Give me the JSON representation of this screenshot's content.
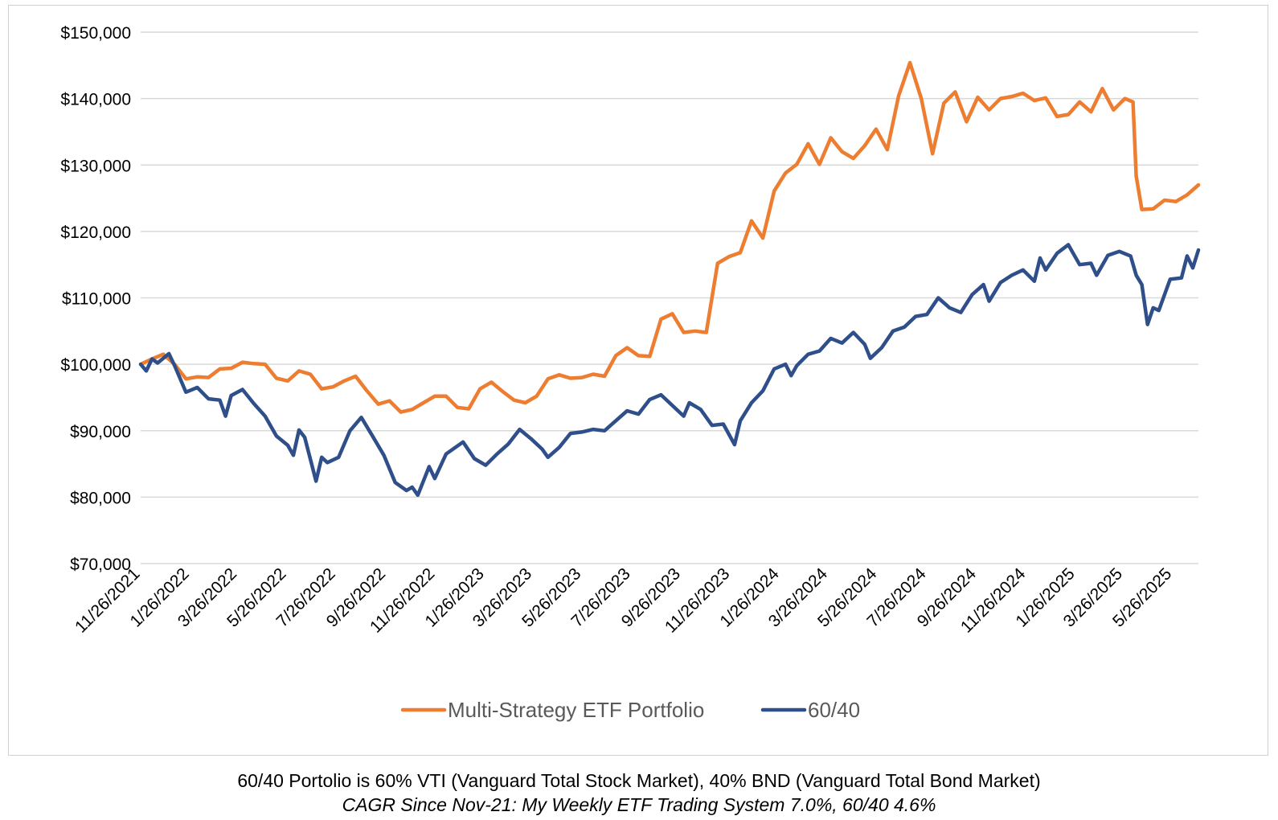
{
  "chart_data": {
    "type": "line",
    "title": "",
    "xlabel": "",
    "ylabel": "",
    "ylim": [
      70000,
      150000
    ],
    "yticks": [
      70000,
      80000,
      90000,
      100000,
      110000,
      120000,
      130000,
      140000,
      150000
    ],
    "ytick_labels": [
      "$70,000",
      "$80,000",
      "$90,000",
      "$100,000",
      "$110,000",
      "$120,000",
      "$130,000",
      "$140,000",
      "$150,000"
    ],
    "x_start": "2021-11-26",
    "x_end": "2025-06-27",
    "xtick_dates": [
      "2021-11-26",
      "2022-01-26",
      "2022-03-26",
      "2022-05-26",
      "2022-07-26",
      "2022-09-26",
      "2022-11-26",
      "2023-01-26",
      "2023-03-26",
      "2023-05-26",
      "2023-07-26",
      "2023-09-26",
      "2023-11-26",
      "2024-01-26",
      "2024-03-26",
      "2024-05-26",
      "2024-07-26",
      "2024-09-26",
      "2024-11-26",
      "2025-01-26",
      "2025-03-26",
      "2025-05-26"
    ],
    "xtick_labels": [
      "11/26/2021",
      "1/26/2022",
      "3/26/2022",
      "5/26/2022",
      "7/26/2022",
      "9/26/2022",
      "11/26/2022",
      "1/26/2023",
      "3/26/2023",
      "5/26/2023",
      "7/26/2023",
      "9/26/2023",
      "11/26/2023",
      "1/26/2024",
      "3/26/2024",
      "5/26/2024",
      "7/26/2024",
      "9/26/2024",
      "11/26/2024",
      "1/26/2025",
      "3/26/2025",
      "5/26/2025"
    ],
    "grid": true,
    "legend_position": "bottom",
    "series": [
      {
        "name": "Multi-Strategy ETF Portfolio",
        "color": "#ED7D31",
        "points": [
          [
            "2021-11-26",
            100000
          ],
          [
            "2021-12-10",
            100800
          ],
          [
            "2021-12-24",
            101500
          ],
          [
            "2022-01-07",
            100000
          ],
          [
            "2022-01-21",
            97800
          ],
          [
            "2022-02-04",
            98100
          ],
          [
            "2022-02-18",
            98000
          ],
          [
            "2022-03-04",
            99300
          ],
          [
            "2022-03-18",
            99400
          ],
          [
            "2022-04-01",
            100300
          ],
          [
            "2022-04-15",
            100100
          ],
          [
            "2022-04-29",
            100000
          ],
          [
            "2022-05-13",
            97900
          ],
          [
            "2022-05-27",
            97500
          ],
          [
            "2022-06-10",
            99000
          ],
          [
            "2022-06-24",
            98500
          ],
          [
            "2022-07-08",
            96300
          ],
          [
            "2022-07-22",
            96600
          ],
          [
            "2022-08-05",
            97500
          ],
          [
            "2022-08-19",
            98200
          ],
          [
            "2022-09-02",
            96000
          ],
          [
            "2022-09-16",
            94000
          ],
          [
            "2022-09-30",
            94500
          ],
          [
            "2022-10-14",
            92800
          ],
          [
            "2022-10-28",
            93200
          ],
          [
            "2022-11-11",
            94200
          ],
          [
            "2022-11-25",
            95200
          ],
          [
            "2022-12-09",
            95200
          ],
          [
            "2022-12-23",
            93500
          ],
          [
            "2023-01-06",
            93300
          ],
          [
            "2023-01-20",
            96300
          ],
          [
            "2023-02-03",
            97300
          ],
          [
            "2023-02-17",
            95900
          ],
          [
            "2023-03-03",
            94600
          ],
          [
            "2023-03-17",
            94200
          ],
          [
            "2023-03-31",
            95200
          ],
          [
            "2023-04-14",
            97800
          ],
          [
            "2023-04-28",
            98400
          ],
          [
            "2023-05-12",
            97900
          ],
          [
            "2023-05-26",
            98000
          ],
          [
            "2023-06-09",
            98500
          ],
          [
            "2023-06-23",
            98200
          ],
          [
            "2023-07-07",
            101300
          ],
          [
            "2023-07-21",
            102500
          ],
          [
            "2023-08-04",
            101300
          ],
          [
            "2023-08-18",
            101200
          ],
          [
            "2023-09-01",
            106800
          ],
          [
            "2023-09-15",
            107600
          ],
          [
            "2023-09-29",
            104800
          ],
          [
            "2023-10-13",
            105000
          ],
          [
            "2023-10-27",
            104800
          ],
          [
            "2023-11-10",
            115200
          ],
          [
            "2023-11-24",
            116200
          ],
          [
            "2023-12-08",
            116800
          ],
          [
            "2023-12-22",
            121600
          ],
          [
            "2024-01-05",
            119000
          ],
          [
            "2024-01-19",
            126100
          ],
          [
            "2024-02-02",
            128800
          ],
          [
            "2024-02-16",
            130100
          ],
          [
            "2024-03-01",
            133200
          ],
          [
            "2024-03-15",
            130100
          ],
          [
            "2024-03-29",
            134100
          ],
          [
            "2024-04-12",
            132000
          ],
          [
            "2024-04-26",
            131000
          ],
          [
            "2024-05-10",
            132900
          ],
          [
            "2024-05-24",
            135400
          ],
          [
            "2024-06-07",
            132300
          ],
          [
            "2024-06-21",
            140400
          ],
          [
            "2024-07-05",
            145400
          ],
          [
            "2024-07-19",
            140000
          ],
          [
            "2024-08-02",
            131700
          ],
          [
            "2024-08-16",
            139300
          ],
          [
            "2024-08-30",
            141000
          ],
          [
            "2024-09-13",
            136500
          ],
          [
            "2024-09-27",
            140200
          ],
          [
            "2024-10-11",
            138300
          ],
          [
            "2024-10-25",
            140000
          ],
          [
            "2024-11-08",
            140300
          ],
          [
            "2024-11-22",
            140800
          ],
          [
            "2024-12-06",
            139700
          ],
          [
            "2024-12-20",
            140100
          ],
          [
            "2025-01-03",
            137300
          ],
          [
            "2025-01-17",
            137600
          ],
          [
            "2025-01-31",
            139500
          ],
          [
            "2025-02-14",
            138000
          ],
          [
            "2025-02-28",
            141500
          ],
          [
            "2025-03-14",
            138300
          ],
          [
            "2025-03-28",
            140000
          ],
          [
            "2025-04-07",
            139500
          ],
          [
            "2025-04-11",
            128300
          ],
          [
            "2025-04-18",
            123300
          ],
          [
            "2025-05-02",
            123400
          ],
          [
            "2025-05-16",
            124700
          ],
          [
            "2025-05-30",
            124500
          ],
          [
            "2025-06-13",
            125500
          ],
          [
            "2025-06-27",
            127000
          ]
        ]
      },
      {
        "name": "60/40",
        "color": "#2F4F8A",
        "points": [
          [
            "2021-11-26",
            100000
          ],
          [
            "2021-12-03",
            99000
          ],
          [
            "2021-12-10",
            100800
          ],
          [
            "2021-12-17",
            100200
          ],
          [
            "2021-12-31",
            101600
          ],
          [
            "2022-01-07",
            99800
          ],
          [
            "2022-01-21",
            95800
          ],
          [
            "2022-02-04",
            96500
          ],
          [
            "2022-02-18",
            94800
          ],
          [
            "2022-03-04",
            94600
          ],
          [
            "2022-03-11",
            92200
          ],
          [
            "2022-03-18",
            95300
          ],
          [
            "2022-04-01",
            96200
          ],
          [
            "2022-04-15",
            94100
          ],
          [
            "2022-04-29",
            92200
          ],
          [
            "2022-05-13",
            89200
          ],
          [
            "2022-05-27",
            87800
          ],
          [
            "2022-06-03",
            86300
          ],
          [
            "2022-06-10",
            90100
          ],
          [
            "2022-06-17",
            89000
          ],
          [
            "2022-07-01",
            82400
          ],
          [
            "2022-07-08",
            86000
          ],
          [
            "2022-07-15",
            85200
          ],
          [
            "2022-07-29",
            86000
          ],
          [
            "2022-08-12",
            90000
          ],
          [
            "2022-08-26",
            92000
          ],
          [
            "2022-09-09",
            89200
          ],
          [
            "2022-09-23",
            86300
          ],
          [
            "2022-10-07",
            82200
          ],
          [
            "2022-10-21",
            81000
          ],
          [
            "2022-10-28",
            81500
          ],
          [
            "2022-11-04",
            80300
          ],
          [
            "2022-11-18",
            84600
          ],
          [
            "2022-11-25",
            82800
          ],
          [
            "2022-12-09",
            86500
          ],
          [
            "2022-12-30",
            88300
          ],
          [
            "2023-01-13",
            85800
          ],
          [
            "2023-01-27",
            84800
          ],
          [
            "2023-02-10",
            86500
          ],
          [
            "2023-02-24",
            88000
          ],
          [
            "2023-03-10",
            90200
          ],
          [
            "2023-03-24",
            88800
          ],
          [
            "2023-04-07",
            87200
          ],
          [
            "2023-04-14",
            86000
          ],
          [
            "2023-04-28",
            87500
          ],
          [
            "2023-05-12",
            89600
          ],
          [
            "2023-05-26",
            89800
          ],
          [
            "2023-06-09",
            90200
          ],
          [
            "2023-06-23",
            90000
          ],
          [
            "2023-07-07",
            91500
          ],
          [
            "2023-07-21",
            93000
          ],
          [
            "2023-08-04",
            92500
          ],
          [
            "2023-08-18",
            94700
          ],
          [
            "2023-09-01",
            95400
          ],
          [
            "2023-09-15",
            93800
          ],
          [
            "2023-09-29",
            92200
          ],
          [
            "2023-10-06",
            94200
          ],
          [
            "2023-10-20",
            93200
          ],
          [
            "2023-11-03",
            90800
          ],
          [
            "2023-11-17",
            91000
          ],
          [
            "2023-12-01",
            87900
          ],
          [
            "2023-12-08",
            91500
          ],
          [
            "2023-12-22",
            94200
          ],
          [
            "2024-01-05",
            96000
          ],
          [
            "2024-01-19",
            99300
          ],
          [
            "2024-02-02",
            100000
          ],
          [
            "2024-02-09",
            98300
          ],
          [
            "2024-02-16",
            99800
          ],
          [
            "2024-03-01",
            101500
          ],
          [
            "2024-03-15",
            102000
          ],
          [
            "2024-03-29",
            103900
          ],
          [
            "2024-04-12",
            103200
          ],
          [
            "2024-04-26",
            104800
          ],
          [
            "2024-05-10",
            103000
          ],
          [
            "2024-05-17",
            100900
          ],
          [
            "2024-05-31",
            102500
          ],
          [
            "2024-06-14",
            105000
          ],
          [
            "2024-06-28",
            105600
          ],
          [
            "2024-07-12",
            107200
          ],
          [
            "2024-07-26",
            107500
          ],
          [
            "2024-08-09",
            110000
          ],
          [
            "2024-08-23",
            108500
          ],
          [
            "2024-09-06",
            107800
          ],
          [
            "2024-09-20",
            110500
          ],
          [
            "2024-10-04",
            112000
          ],
          [
            "2024-10-11",
            109500
          ],
          [
            "2024-10-25",
            112300
          ],
          [
            "2024-11-08",
            113400
          ],
          [
            "2024-11-22",
            114200
          ],
          [
            "2024-12-06",
            112500
          ],
          [
            "2024-12-13",
            116000
          ],
          [
            "2024-12-20",
            114200
          ],
          [
            "2025-01-03",
            116700
          ],
          [
            "2025-01-17",
            118000
          ],
          [
            "2025-01-31",
            115000
          ],
          [
            "2025-02-14",
            115200
          ],
          [
            "2025-02-21",
            113400
          ],
          [
            "2025-03-07",
            116400
          ],
          [
            "2025-03-21",
            117000
          ],
          [
            "2025-04-04",
            116300
          ],
          [
            "2025-04-11",
            113400
          ],
          [
            "2025-04-18",
            112000
          ],
          [
            "2025-04-25",
            106000
          ],
          [
            "2025-05-02",
            108500
          ],
          [
            "2025-05-09",
            108100
          ],
          [
            "2025-05-23",
            112800
          ],
          [
            "2025-06-06",
            113000
          ],
          [
            "2025-06-13",
            116300
          ],
          [
            "2025-06-20",
            114500
          ],
          [
            "2025-06-27",
            117200
          ]
        ]
      }
    ]
  },
  "captions": {
    "line1": "60/40 Portolio is 60% VTI (Vanguard Total Stock Market), 40% BND (Vanguard Total Bond Market)",
    "line2": "CAGR Since Nov-21: My Weekly ETF Trading System 7.0%, 60/40 4.6%"
  }
}
